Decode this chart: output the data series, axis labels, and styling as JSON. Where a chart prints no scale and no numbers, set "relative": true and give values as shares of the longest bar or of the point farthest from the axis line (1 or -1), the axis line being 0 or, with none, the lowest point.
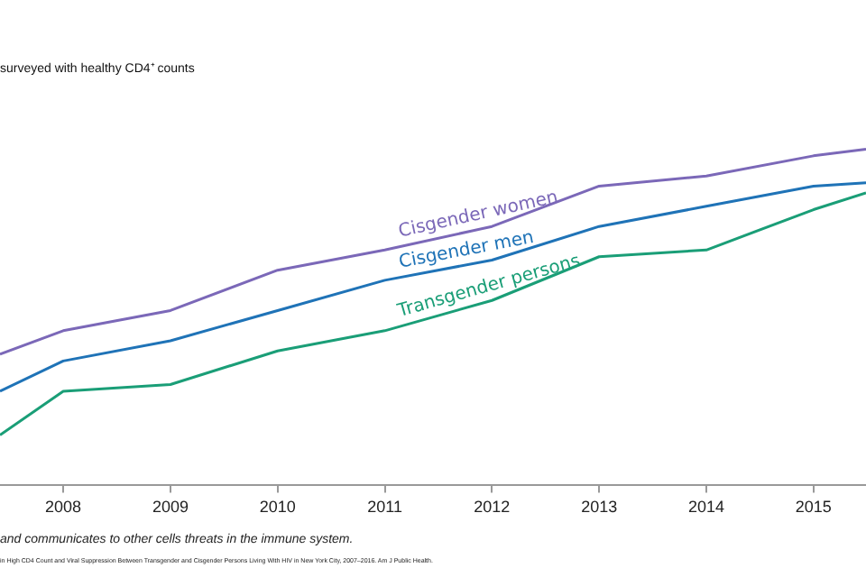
{
  "chart_data": {
    "type": "line",
    "relative": true,
    "title": "surveyed with healthy CD4⁺ counts",
    "x": [
      2007.41,
      2008,
      2009,
      2010,
      2011,
      2012,
      2013,
      2014,
      2015,
      2015.49
    ],
    "xlim": [
      2007.41,
      2015.49
    ],
    "xticks": [
      2008,
      2009,
      2010,
      2011,
      2012,
      2013,
      2014,
      2015
    ],
    "series": [
      {
        "name": "Cisgender women",
        "color": "#7b68b8",
        "values": [
          0.39,
          0.46,
          0.52,
          0.64,
          0.7,
          0.77,
          0.89,
          0.92,
          0.98,
          1
        ]
      },
      {
        "name": "Cisgender men",
        "color": "#1f73b7",
        "values": [
          0.28,
          0.37,
          0.43,
          0.52,
          0.61,
          0.67,
          0.77,
          0.83,
          0.89,
          0.9
        ]
      },
      {
        "name": "Transgender persons",
        "color": "#1a9e77",
        "values": [
          0.15,
          0.28,
          0.3,
          0.4,
          0.46,
          0.55,
          0.68,
          0.7,
          0.82,
          0.87
        ]
      }
    ],
    "annotations": [
      "and communicates to other cells threats in the immune system.",
      "in High CD4 Count and Viral Suppression Between Transgender and Cisgender Persons Living With HIV in New York City, 2007–2016. Am J Public Health."
    ],
    "legend": false,
    "marker": "none",
    "line_style": "solid"
  }
}
